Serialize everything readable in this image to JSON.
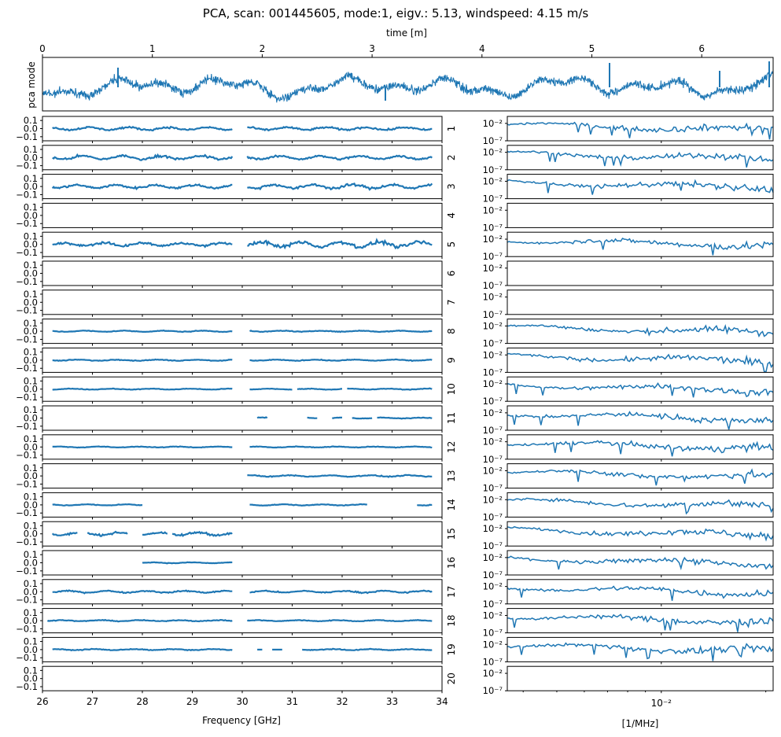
{
  "figure": {
    "title": "PCA, scan: 001445605, mode:1, eigv.: 5.13, windspeed: 4.15 m/s",
    "line_color": "#1f77b4"
  },
  "chart_data": [
    {
      "type": "line",
      "name": "pca-mode-timeseries",
      "xlabel": "time [m]",
      "ylabel": "pca mode",
      "xlim": [
        0,
        6.65
      ],
      "xticks": [
        "0",
        "1",
        "2",
        "3",
        "4",
        "5",
        "6"
      ],
      "description_series": "noisy time series of the first PCA mode"
    },
    {
      "type": "scatter",
      "name": "feed-frequency-panels",
      "xlabel": "Frequency [GHz]",
      "xlim": [
        26,
        34
      ],
      "ylim": [
        -0.15,
        0.15
      ],
      "xticks": [
        "26",
        "27",
        "28",
        "29",
        "30",
        "31",
        "32",
        "33",
        "34"
      ],
      "yticks": [
        "0.1",
        "0.0",
        "−0.1"
      ],
      "feeds": [
        "1",
        "2",
        "3",
        "4",
        "5",
        "6",
        "7",
        "8",
        "9",
        "10",
        "11",
        "12",
        "13",
        "14",
        "15",
        "16",
        "17",
        "18",
        "19",
        "20"
      ],
      "segments": [
        [
          [
            26.2,
            29.8,
            0.03
          ],
          [
            30.1,
            33.8,
            0.03
          ]
        ],
        [
          [
            26.2,
            29.8,
            0.04
          ],
          [
            30.1,
            33.8,
            0.035
          ]
        ],
        [
          [
            26.2,
            29.8,
            0.035
          ],
          [
            30.1,
            33.8,
            0.045
          ]
        ],
        [],
        [
          [
            26.2,
            29.8,
            0.035
          ],
          [
            30.1,
            33.8,
            0.06
          ]
        ],
        [],
        [],
        [
          [
            26.2,
            29.8,
            0.012
          ],
          [
            30.15,
            33.8,
            0.012
          ]
        ],
        [
          [
            26.2,
            29.8,
            0.012
          ],
          [
            30.15,
            33.8,
            0.012
          ]
        ],
        [
          [
            26.2,
            29.8,
            0.01
          ],
          [
            30.15,
            31.0,
            0.01
          ],
          [
            31.1,
            32.0,
            0.01
          ],
          [
            32.1,
            33.8,
            0.01
          ]
        ],
        [
          [
            30.3,
            30.5,
            0.012
          ],
          [
            31.3,
            31.5,
            0.01
          ],
          [
            31.8,
            32.0,
            0.01
          ],
          [
            32.2,
            32.6,
            0.01
          ],
          [
            32.7,
            33.8,
            0.01
          ]
        ],
        [
          [
            26.2,
            29.8,
            0.01
          ],
          [
            30.15,
            33.8,
            0.01
          ]
        ],
        [
          [
            30.1,
            33.8,
            0.015
          ]
        ],
        [
          [
            26.2,
            28.0,
            0.012
          ],
          [
            30.15,
            32.5,
            0.012
          ],
          [
            33.5,
            33.8,
            0.012
          ]
        ],
        [
          [
            26.2,
            26.7,
            0.035
          ],
          [
            26.9,
            27.7,
            0.03
          ],
          [
            28.0,
            28.5,
            0.025
          ],
          [
            28.6,
            29.8,
            0.035
          ]
        ],
        [
          [
            28.0,
            29.8,
            0.01
          ]
        ],
        [
          [
            26.2,
            29.8,
            0.02
          ],
          [
            30.15,
            33.8,
            0.02
          ]
        ],
        [
          [
            26.1,
            29.8,
            0.012
          ],
          [
            30.1,
            33.8,
            0.012
          ]
        ],
        [
          [
            26.2,
            29.8,
            0.012
          ],
          [
            30.3,
            30.4,
            0.0
          ],
          [
            30.6,
            30.8,
            0.0
          ],
          [
            31.2,
            33.8,
            0.012
          ]
        ],
        []
      ]
    },
    {
      "type": "line",
      "name": "feed-spectrum-panels",
      "xlabel": "[1/MHz]",
      "xscale": "log",
      "xlim": [
        0.0036,
        0.021
      ],
      "xticks": [
        "10⁻²"
      ],
      "yscale": "log",
      "ylim": [
        1e-07,
        1
      ],
      "yticks": [
        "10⁻²",
        "10⁻⁷"
      ],
      "has_data": [
        true,
        true,
        true,
        false,
        true,
        false,
        false,
        true,
        true,
        true,
        true,
        true,
        true,
        true,
        true,
        true,
        true,
        true,
        true,
        false
      ]
    }
  ]
}
